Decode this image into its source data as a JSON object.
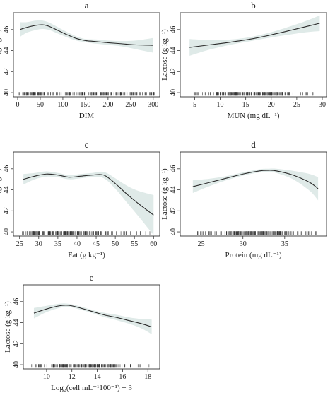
{
  "figure": {
    "colors": {
      "band": "#dfeae8",
      "curve": "#2a2a2a",
      "axis": "#333333",
      "rug": "#333333"
    }
  },
  "chart_data": [
    {
      "type": "line",
      "letter": "a",
      "xlabel": "DIM",
      "ylabel": "Lactose (g kg⁻¹)",
      "xlim": [
        0,
        305
      ],
      "ylim": [
        39.6,
        47.6
      ],
      "xticks": [
        0,
        50,
        100,
        150,
        200,
        250,
        300
      ],
      "yticks": [
        40,
        42,
        44,
        46
      ],
      "series": [
        {
          "x": [
            5,
            20,
            40,
            55,
            70,
            90,
            110,
            130,
            150,
            175,
            200,
            230,
            260,
            300
          ],
          "y": [
            46.0,
            46.2,
            46.4,
            46.45,
            46.3,
            45.9,
            45.5,
            45.15,
            44.95,
            44.85,
            44.75,
            44.65,
            44.55,
            44.5
          ],
          "lower": [
            45.3,
            45.7,
            45.95,
            46.05,
            45.95,
            45.6,
            45.25,
            44.95,
            44.8,
            44.65,
            44.55,
            44.4,
            44.15,
            43.8
          ],
          "upper": [
            46.7,
            46.7,
            46.85,
            46.85,
            46.65,
            46.2,
            45.75,
            45.35,
            45.1,
            45.05,
            44.95,
            44.9,
            44.95,
            45.2
          ]
        }
      ],
      "rug": {
        "from": 3,
        "to": 303,
        "dense_from": 3,
        "dense_to": 303
      }
    },
    {
      "type": "line",
      "letter": "b",
      "xlabel": "MUN (mg dL⁻¹)",
      "ylabel": "Lactose (g kg⁻¹)",
      "xlim": [
        3,
        30
      ],
      "ylim": [
        39.6,
        47.6
      ],
      "xticks": [
        5,
        10,
        15,
        20,
        25,
        30
      ],
      "yticks": [
        40,
        42,
        44,
        46
      ],
      "series": [
        {
          "x": [
            4,
            8,
            12,
            16,
            20,
            24,
            27,
            29.5
          ],
          "y": [
            44.3,
            44.55,
            44.8,
            45.1,
            45.5,
            45.95,
            46.3,
            46.6
          ],
          "lower": [
            43.5,
            44.1,
            44.55,
            44.9,
            45.25,
            45.55,
            45.75,
            45.85
          ],
          "upper": [
            45.1,
            45.0,
            45.05,
            45.3,
            45.75,
            46.35,
            46.85,
            47.35
          ]
        }
      ],
      "rug": {
        "from": 4,
        "to": 29,
        "dense_from": 8,
        "dense_to": 24
      }
    },
    {
      "type": "line",
      "letter": "c",
      "xlabel": "Fat (g kg⁻¹)",
      "ylabel": "Lactose (g kg⁻¹)",
      "xlim": [
        24.5,
        60.5
      ],
      "ylim": [
        39.6,
        47.6
      ],
      "xticks": [
        25,
        30,
        35,
        40,
        45,
        50,
        55,
        60
      ],
      "yticks": [
        40,
        42,
        44,
        46
      ],
      "series": [
        {
          "x": [
            26,
            29,
            32,
            35,
            38,
            41,
            44,
            47,
            50,
            53,
            56,
            60
          ],
          "y": [
            45.0,
            45.3,
            45.5,
            45.4,
            45.2,
            45.3,
            45.4,
            45.4,
            44.6,
            43.6,
            42.7,
            41.6
          ],
          "lower": [
            44.5,
            45.0,
            45.25,
            45.2,
            45.0,
            45.1,
            45.2,
            45.1,
            44.1,
            42.8,
            41.5,
            39.7
          ],
          "upper": [
            45.5,
            45.6,
            45.75,
            45.6,
            45.4,
            45.5,
            45.6,
            45.7,
            45.1,
            44.4,
            43.9,
            43.5
          ]
        }
      ],
      "rug": {
        "from": 25.5,
        "to": 59.5,
        "dense_from": 27,
        "dense_to": 48
      }
    },
    {
      "type": "line",
      "letter": "d",
      "xlabel": "Protein (mg dL⁻¹)",
      "ylabel": "Lactose (g kg⁻¹)",
      "xlim": [
        23,
        39.5
      ],
      "ylim": [
        39.6,
        47.6
      ],
      "xticks": [
        25,
        30,
        35
      ],
      "yticks": [
        40,
        42,
        44,
        46
      ],
      "series": [
        {
          "x": [
            24,
            26,
            28,
            30,
            32,
            33,
            34,
            36,
            38,
            39
          ],
          "y": [
            44.3,
            44.7,
            45.1,
            45.5,
            45.8,
            45.85,
            45.8,
            45.4,
            44.7,
            44.1
          ],
          "lower": [
            43.7,
            44.35,
            44.9,
            45.35,
            45.65,
            45.7,
            45.6,
            45.0,
            43.9,
            43.0
          ],
          "upper": [
            44.9,
            45.05,
            45.3,
            45.65,
            45.95,
            46.0,
            46.0,
            45.8,
            45.5,
            45.2
          ]
        }
      ],
      "rug": {
        "from": 24,
        "to": 39,
        "dense_from": 28,
        "dense_to": 36
      }
    },
    {
      "type": "line",
      "letter": "e",
      "xlabel": "Log₂(cell mL⁻¹100⁻¹) + 3",
      "ylabel": "Lactose (g kg⁻¹)",
      "xlim": [
        8.5,
        18.6
      ],
      "ylim": [
        39.6,
        47.6
      ],
      "xticks": [
        10,
        12,
        14,
        16,
        18
      ],
      "yticks": [
        40,
        42,
        44,
        46
      ],
      "series": [
        {
          "x": [
            9,
            10,
            11,
            11.7,
            12.5,
            13.5,
            14.5,
            15.5,
            16.5,
            17.5,
            18.3
          ],
          "y": [
            44.9,
            45.3,
            45.6,
            45.65,
            45.45,
            45.1,
            44.75,
            44.5,
            44.2,
            43.9,
            43.6
          ],
          "lower": [
            44.4,
            45.0,
            45.4,
            45.5,
            45.3,
            44.95,
            44.55,
            44.25,
            43.9,
            43.45,
            42.9
          ],
          "upper": [
            45.4,
            45.6,
            45.8,
            45.8,
            45.6,
            45.25,
            44.95,
            44.75,
            44.5,
            44.35,
            44.3
          ]
        }
      ],
      "rug": {
        "from": 8.7,
        "to": 18.4,
        "dense_from": 10.5,
        "dense_to": 15.5
      }
    }
  ]
}
